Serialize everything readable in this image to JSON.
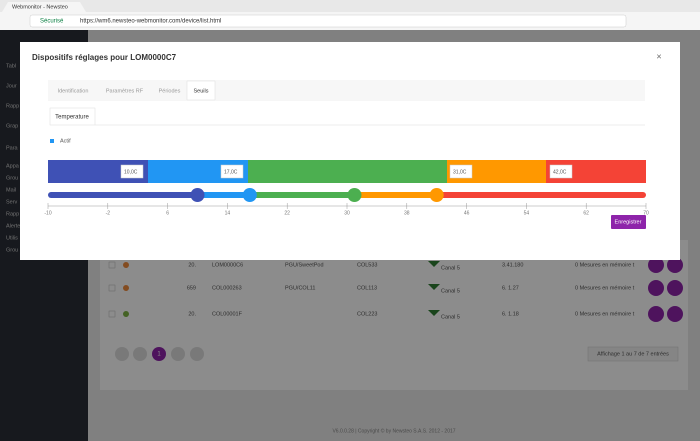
{
  "browser": {
    "tab_title": "Webmonitor - Newsteo",
    "secure": "Sécurisé",
    "url": "https://wm6.newsteo-webmonitor.com/device/list.html"
  },
  "sidebar": [
    "Tabl",
    "Jour",
    "Rapp",
    "Grap",
    "Para",
    "Appa",
    "Grou",
    "Mail",
    "Serv",
    "Rapp",
    "Alerte",
    "Utilis",
    "Grou"
  ],
  "table": {
    "rows": [
      [
        "20.",
        "LOM0000C6",
        "PGU/SweetPod",
        "COL533",
        "Canal 5",
        "3.41.180",
        "0 Mesures en mémoire t"
      ],
      [
        "659",
        "COL000263",
        "PGU/COL11",
        "COL113",
        "Canal 5",
        "6. 1.27",
        "0 Mesures en mémoire t"
      ],
      [
        "20.",
        "COL00001F",
        null,
        "COL223",
        "Canal 5",
        "6. 1.18",
        "0 Mesures en mémoire t"
      ]
    ]
  },
  "pagination": {
    "page": "1",
    "info": "Affichage 1 au 7 de 7 entrées"
  },
  "footer": "V6.0.0.28 | Copyright © by Newsteo S.A.S. 2012 - 2017",
  "modal": {
    "title": "Dispositifs réglages pour LOM0000C7",
    "tabs": [
      "Identification",
      "Paramètres RF",
      "Périodes",
      "Seuils"
    ],
    "subtab": "Temperature",
    "checkbox": "Actif",
    "thresholds": [
      {
        "value": 10,
        "label": "10,0C"
      },
      {
        "value": 17,
        "label": "17,0C"
      },
      {
        "value": 31,
        "label": "31,0C"
      },
      {
        "value": 42,
        "label": "42,0C"
      }
    ],
    "scale": {
      "range": [
        -10,
        70
      ],
      "ticks": [
        -10,
        -2,
        6,
        14,
        22,
        30,
        38,
        46,
        54,
        62,
        70
      ]
    },
    "zone_colors": [
      "#3f51b5",
      "#2196f3",
      "#4caf50",
      "#ff9800",
      "#f44336"
    ],
    "button": "Enregistrer"
  }
}
